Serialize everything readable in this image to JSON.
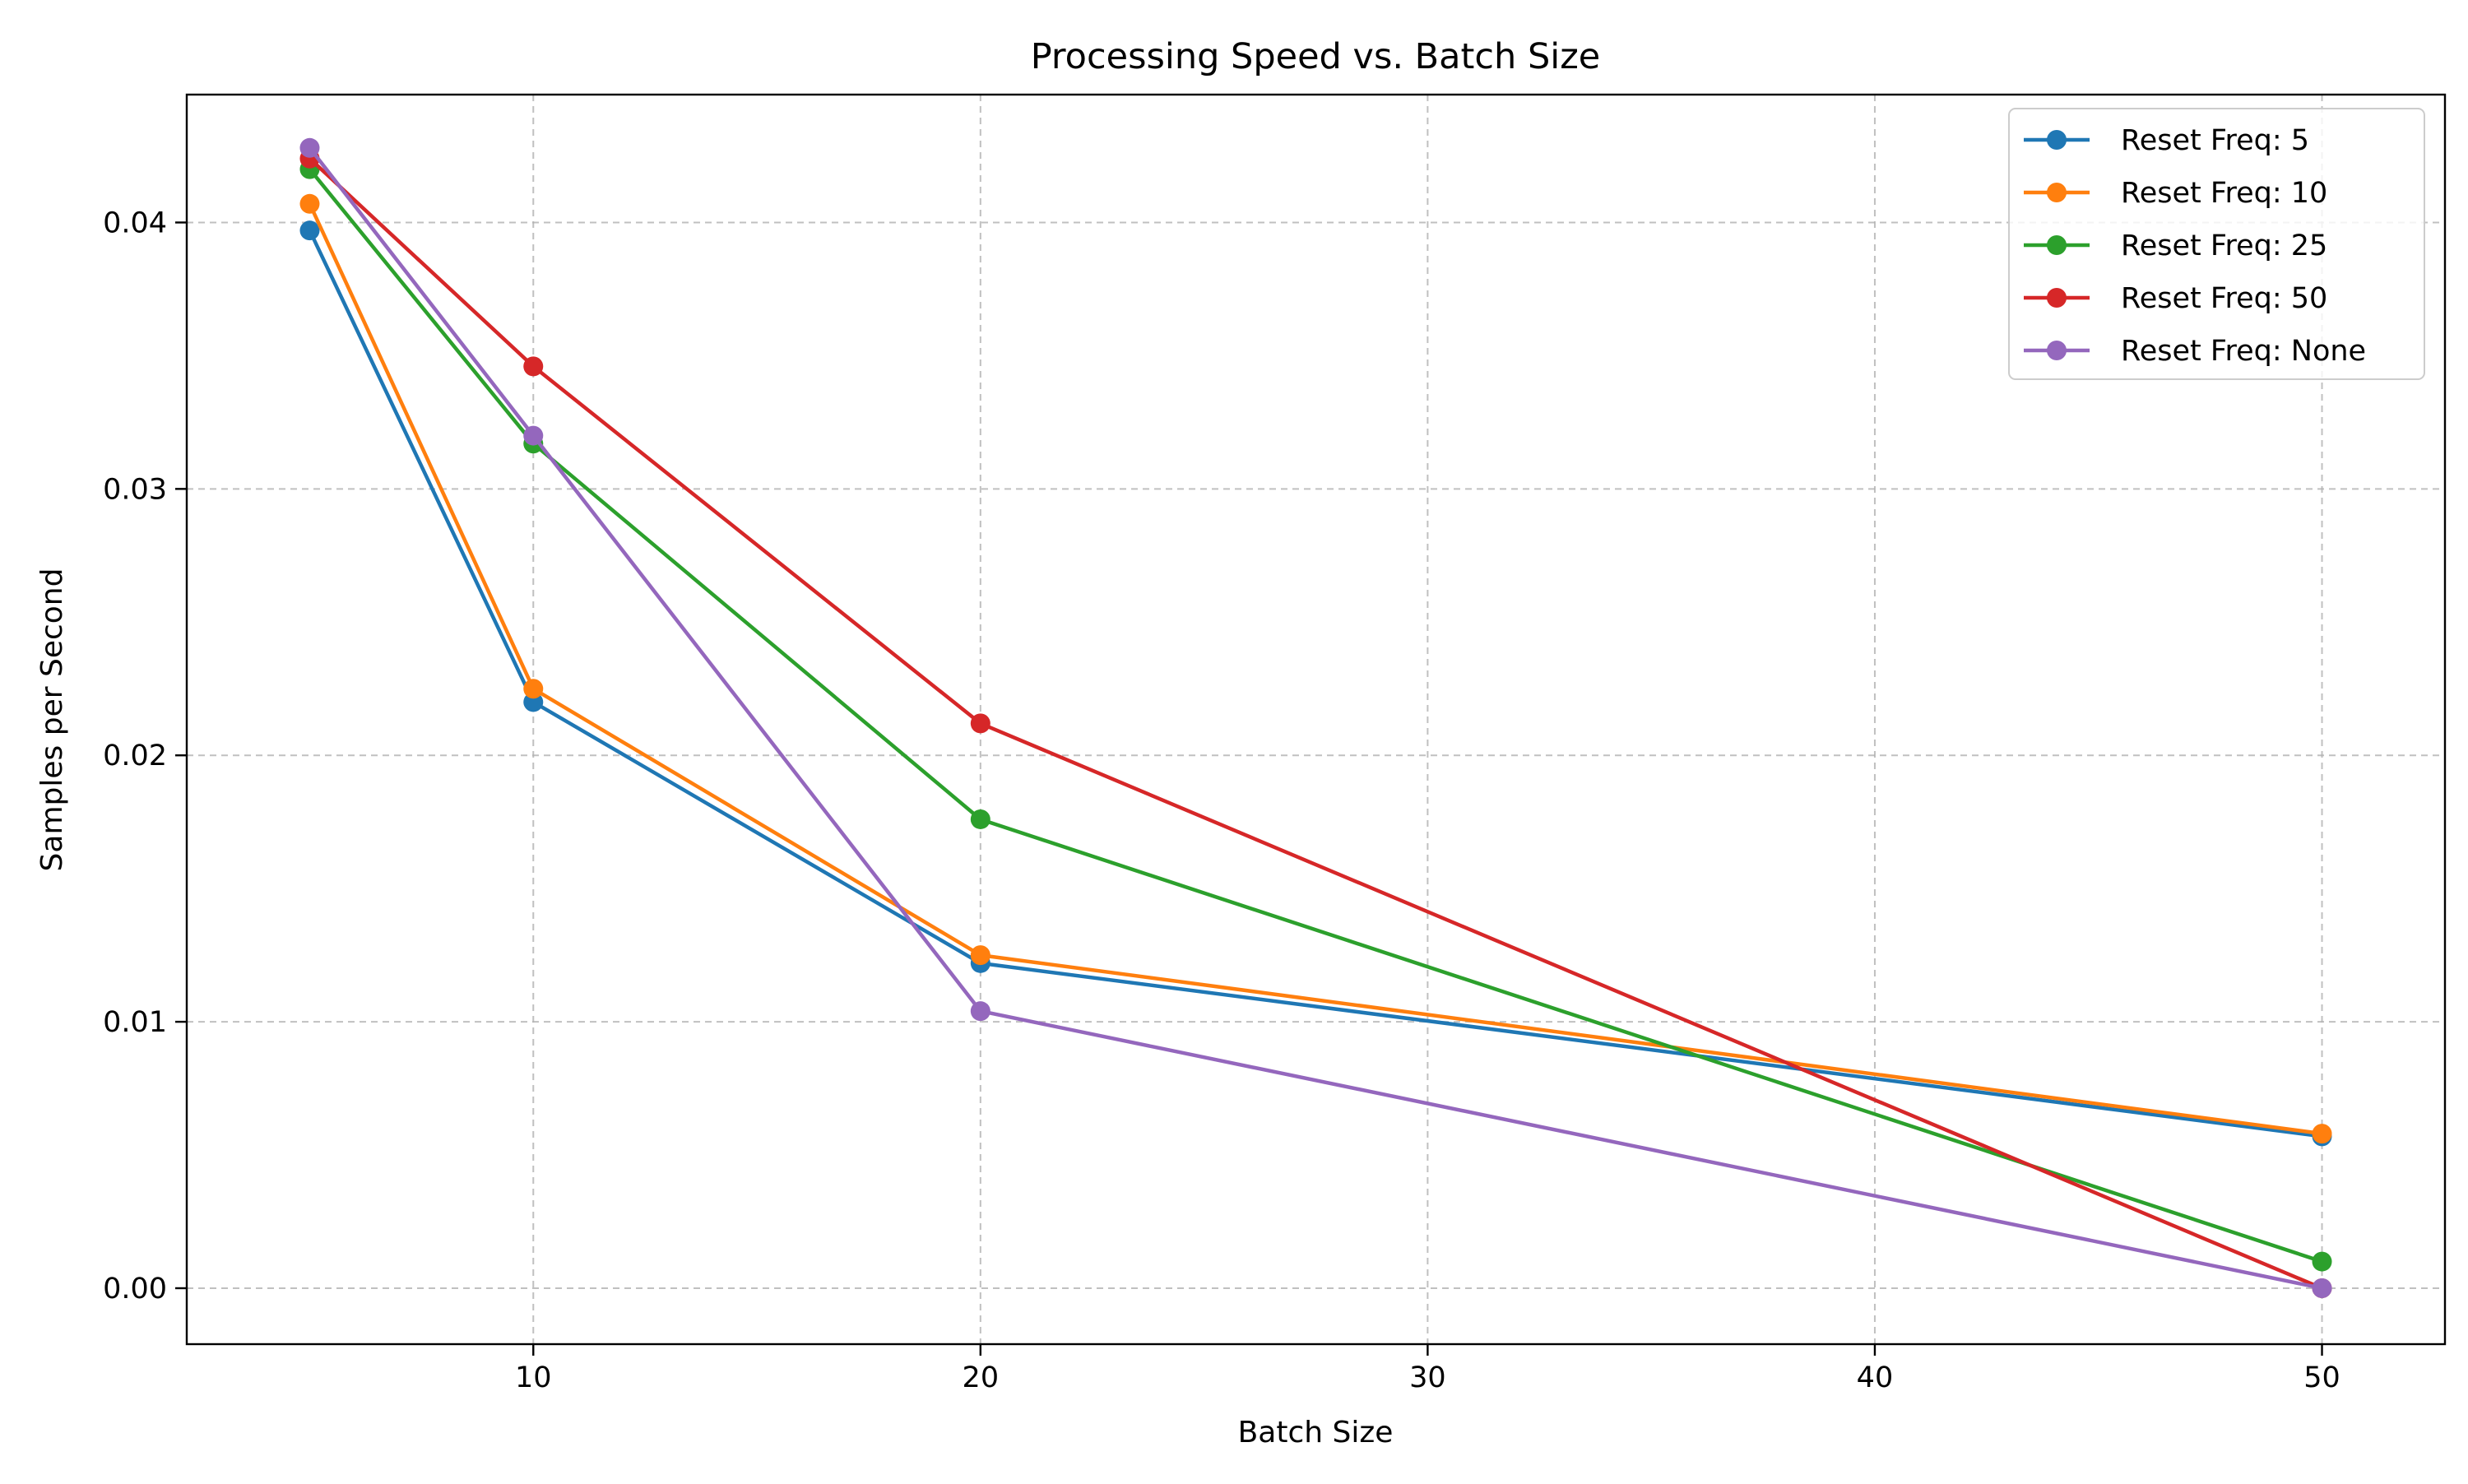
{
  "chart_data": {
    "type": "line",
    "title": "Processing Speed vs. Batch Size",
    "xlabel": "Batch Size",
    "ylabel": "Samples per Second",
    "xlim": [
      2.25,
      52.75
    ],
    "ylim": [
      -0.0021,
      0.0448
    ],
    "xticks": [
      10,
      20,
      30,
      40,
      50
    ],
    "xtick_labels": [
      "10",
      "20",
      "30",
      "40",
      "50"
    ],
    "yticks": [
      0.0,
      0.01,
      0.02,
      0.03,
      0.04
    ],
    "ytick_labels": [
      "0.00",
      "0.01",
      "0.02",
      "0.03",
      "0.04"
    ],
    "grid": true,
    "legend_position": "top-right",
    "x": [
      5,
      10,
      20,
      50
    ],
    "series": [
      {
        "name": "Reset Freq: 5",
        "color": "#1f77b4",
        "values": [
          0.0397,
          0.022,
          0.0122,
          0.0057
        ]
      },
      {
        "name": "Reset Freq: 10",
        "color": "#ff7f0e",
        "values": [
          0.0407,
          0.0225,
          0.0125,
          0.0058
        ]
      },
      {
        "name": "Reset Freq: 25",
        "color": "#2ca02c",
        "values": [
          0.042,
          0.0317,
          0.0176,
          0.001
        ]
      },
      {
        "name": "Reset Freq: 50",
        "color": "#d62728",
        "values": [
          0.0424,
          0.0346,
          0.0212,
          0.0
        ]
      },
      {
        "name": "Reset Freq: None",
        "color": "#9467bd",
        "values": [
          0.0428,
          0.032,
          0.0104,
          0.0
        ]
      }
    ]
  }
}
